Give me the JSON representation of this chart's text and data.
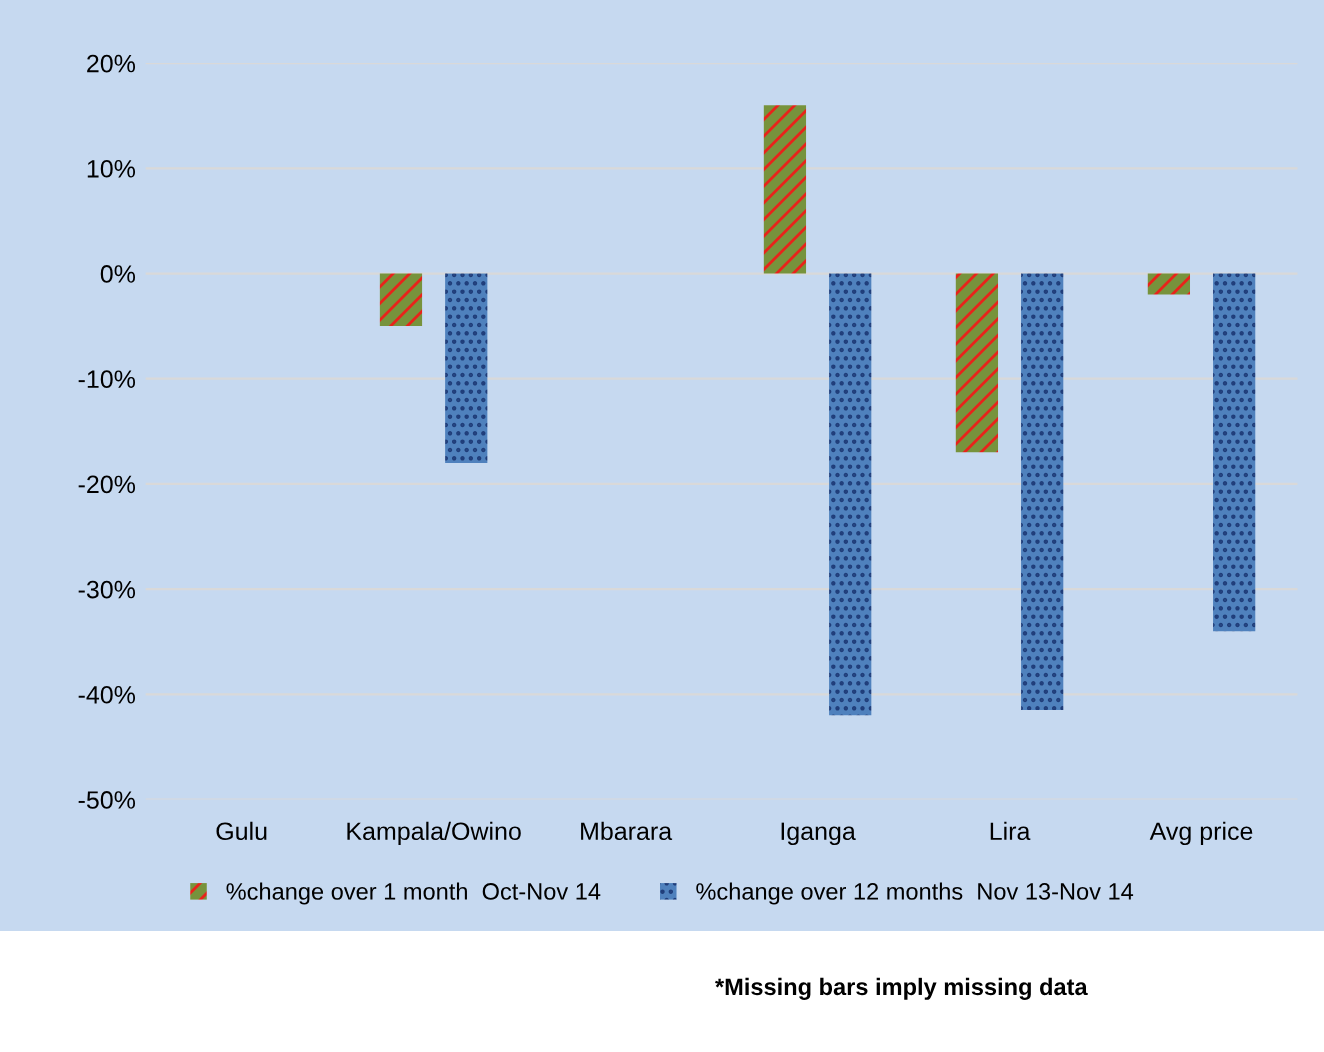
{
  "chart_data": {
    "type": "bar",
    "categories": [
      "Gulu",
      "Kampala/Owino",
      "Mbarara",
      "Iganga",
      "Lira",
      "Avg price"
    ],
    "series": [
      {
        "name": "%change over 1 month  Oct-Nov 14",
        "color": "#77933c",
        "values": [
          null,
          -5,
          null,
          16,
          -17,
          -2
        ]
      },
      {
        "name": "%change over 12 months  Nov 13-Nov 14",
        "color": "#4f81bd",
        "values": [
          null,
          -18,
          null,
          -42,
          -41.5,
          -34
        ]
      }
    ],
    "ylim": [
      -50,
      20
    ],
    "yticks": [
      {
        "value": 20,
        "label": "20%"
      },
      {
        "value": 10,
        "label": "10%"
      },
      {
        "value": 0,
        "label": "0%"
      },
      {
        "value": -10,
        "label": "-10%"
      },
      {
        "value": -20,
        "label": "-20%"
      },
      {
        "value": -30,
        "label": "-30%"
      },
      {
        "value": -40,
        "label": "-40%"
      },
      {
        "value": -50,
        "label": "-50%"
      }
    ],
    "grid": "y",
    "legend": "bottom",
    "annotations": [
      "*Missing bars imply missing data"
    ]
  }
}
